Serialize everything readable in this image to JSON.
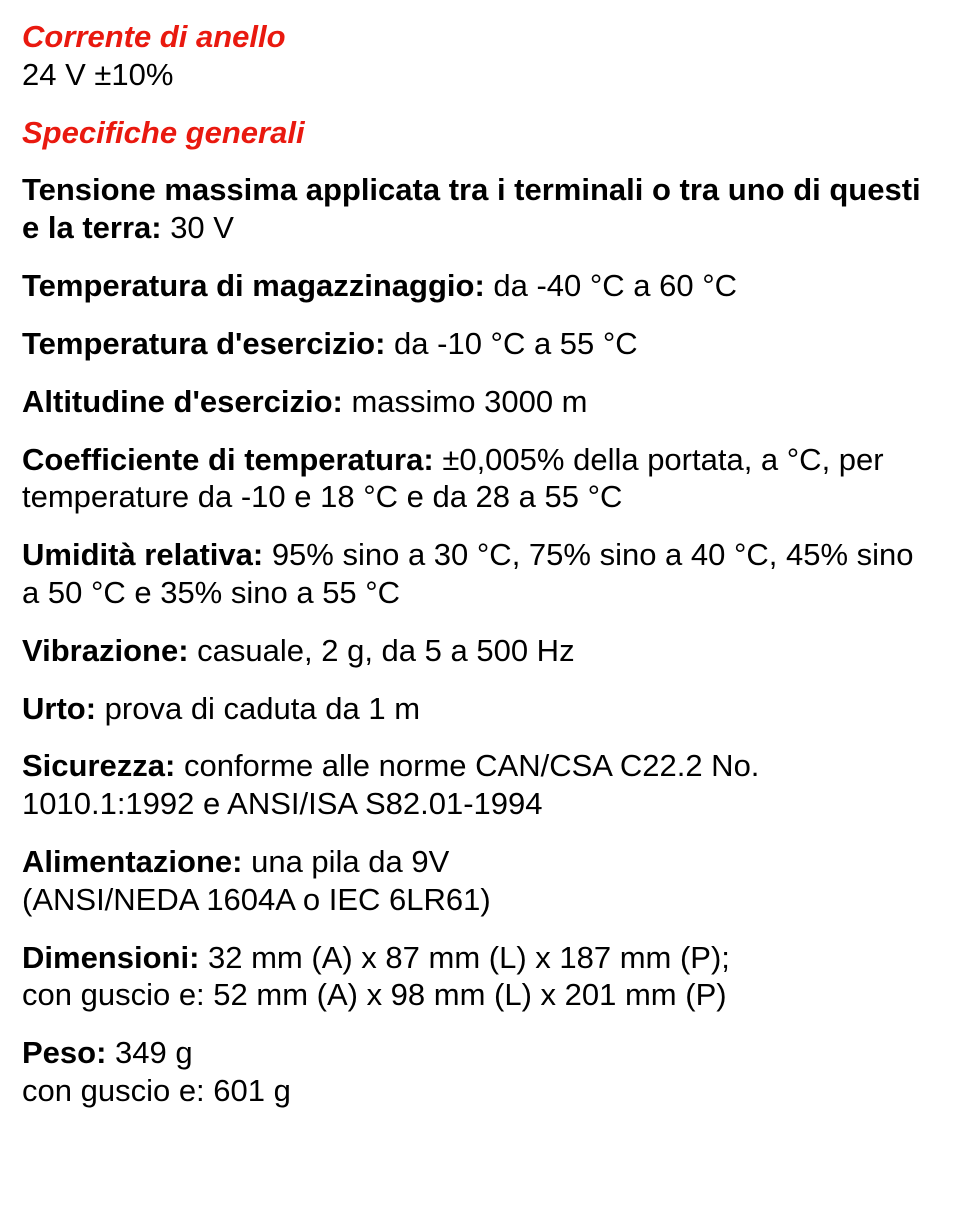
{
  "colors": {
    "heading": "#e9190f",
    "body": "#000000",
    "background": "#ffffff"
  },
  "typography": {
    "font_family": "Arial",
    "body_fontsize": 31,
    "heading_fontsize": 31,
    "line_height": 1.22
  },
  "sections": {
    "s1": {
      "title": "Corrente di anello",
      "line1": "24 V ±10%"
    },
    "s2": {
      "title": "Specifiche generali",
      "items": {
        "tensione": {
          "label": "Tensione massima applicata tra i terminali o tra uno di questi e la terra:",
          "value": " 30 V"
        },
        "temp_mag": {
          "label": "Temperatura di magazzinaggio:",
          "value": " da -40 °C a 60 °C"
        },
        "temp_es": {
          "label": "Temperatura d'esercizio:",
          "value": " da -10 °C a 55 °C"
        },
        "alt": {
          "label": "Altitudine d'esercizio:",
          "value": " massimo 3000 m"
        },
        "coeff": {
          "label": "Coefficiente di temperatura:",
          "value": " ±0,005% della portata, a °C, per temperature da -10 e 18 °C e da 28 a 55 °C"
        },
        "umid": {
          "label": "Umidità relativa:",
          "value": " 95% sino a 30 °C, 75% sino a 40 °C, 45% sino a 50 °C e 35% sino a 55 °C"
        },
        "vibr": {
          "label": "Vibrazione:",
          "value": " casuale, 2 g, da 5 a 500 Hz"
        },
        "urto": {
          "label": "Urto:",
          "value": " prova di caduta da 1 m"
        },
        "sic": {
          "label": "Sicurezza:",
          "value": " conforme alle norme CAN/CSA C22.2 No. 1010.1:1992 e ANSI/ISA S82.01-1994"
        },
        "alim": {
          "label": "Alimentazione:",
          "value_line1": " una pila da 9V",
          "value_line2": "(ANSI/NEDA 1604A o IEC 6LR61)"
        },
        "dim": {
          "label": "Dimensioni:",
          "value_line1": " 32 mm (A) x 87 mm (L) x 187 mm (P);",
          "value_line2": "con guscio e: 52 mm (A) x 98 mm (L) x 201 mm (P)"
        },
        "peso": {
          "label": "Peso:",
          "value_line1": " 349 g",
          "value_line2": "con guscio e: 601 g"
        }
      }
    }
  }
}
